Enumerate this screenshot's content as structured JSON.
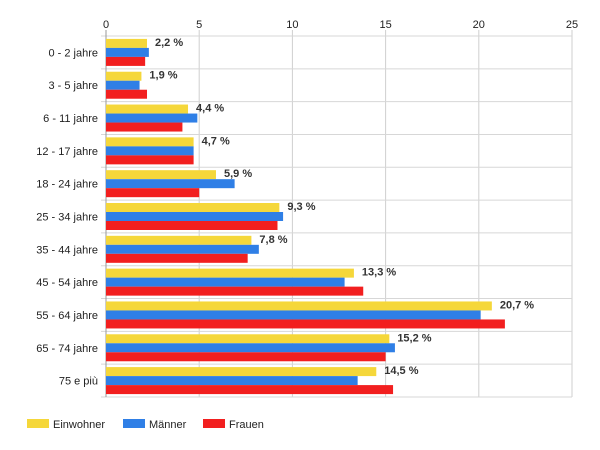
{
  "chart_data": {
    "type": "bar",
    "orientation": "horizontal",
    "categories": [
      "0 - 2 jahre",
      "3 - 5 jahre",
      "6 - 11 jahre",
      "12 - 17 jahre",
      "18 - 24 jahre",
      "25 - 34 jahre",
      "35 - 44 jahre",
      "45 - 54 jahre",
      "55 - 64 jahre",
      "65 - 74 jahre",
      "75 e più"
    ],
    "series": [
      {
        "name": "Einwohner",
        "color": "#f5d73a",
        "values": [
          2.2,
          1.9,
          4.4,
          4.7,
          5.9,
          9.3,
          7.8,
          13.3,
          20.7,
          15.2,
          14.5
        ],
        "data_labels": [
          "2,2 %",
          "1,9 %",
          "4,4 %",
          "4,7 %",
          "5,9 %",
          "9,3 %",
          "7,8 %",
          "13,3 %",
          "20,7 %",
          "15,2 %",
          "14,5 %"
        ]
      },
      {
        "name": "Männer",
        "color": "#2f7fe6",
        "values": [
          2.3,
          1.8,
          4.9,
          4.7,
          6.9,
          9.5,
          8.2,
          12.8,
          20.1,
          15.5,
          13.5
        ]
      },
      {
        "name": "Frauen",
        "color": "#f21f1f",
        "values": [
          2.1,
          2.2,
          4.1,
          4.7,
          5.0,
          9.2,
          7.6,
          13.8,
          21.4,
          15.0,
          15.4
        ]
      }
    ],
    "xlim": [
      0,
      25
    ],
    "xticks": [
      "0",
      "5",
      "10",
      "15",
      "20",
      "25"
    ],
    "grid": true,
    "legend_position": "bottom-left",
    "title": "",
    "xlabel": "",
    "ylabel": ""
  }
}
